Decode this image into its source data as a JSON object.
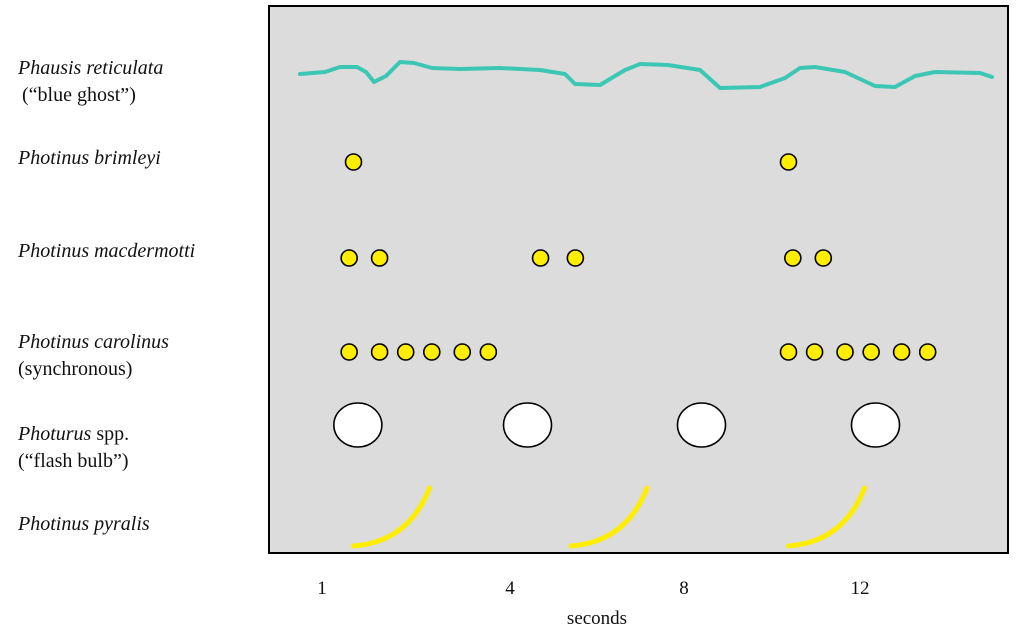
{
  "rows": [
    {
      "species": "Phausis reticulata",
      "note": "(“blue ghost”)",
      "pattern": "continuous glow"
    },
    {
      "species": "Photinus brimleyi",
      "note": "",
      "pattern": "single flash"
    },
    {
      "species": "Photinus macdermotti",
      "note": "",
      "pattern": "double flash"
    },
    {
      "species": "Photinus carolinus",
      "note": "(synchronous)",
      "pattern": "flash burst"
    },
    {
      "species": "Photurus",
      "species_suffix": " spp.",
      "note": "(“flash bulb”)",
      "pattern": "large flash"
    },
    {
      "species": "Photinus pyralis",
      "note": "",
      "pattern": "J-stroke"
    }
  ],
  "x_axis": {
    "ticks": [
      "1",
      "4",
      "8",
      "12"
    ],
    "label": "seconds"
  },
  "colors": {
    "panel": "#dcdcdc",
    "glow": "#3cc7b4",
    "flash_yellow": "#ffee00",
    "flash_white": "#ffffff",
    "stroke": "#000000"
  },
  "chart_data": {
    "type": "timeline",
    "xlabel": "seconds",
    "x_ticks": [
      1,
      4,
      8,
      12
    ],
    "series": [
      {
        "name": "Phausis reticulata",
        "kind": "continuous"
      },
      {
        "name": "Photinus brimleyi",
        "kind": "flash",
        "flash_times": [
          1.0,
          11.0
        ]
      },
      {
        "name": "Photinus macdermotti",
        "kind": "flash",
        "flash_times": [
          0.9,
          1.6,
          5.3,
          6.1,
          11.1,
          11.8
        ]
      },
      {
        "name": "Photinus carolinus",
        "kind": "flash",
        "flash_times": [
          0.9,
          1.6,
          2.2,
          2.8,
          3.5,
          4.1,
          11.0,
          11.6,
          12.3,
          12.9,
          13.6,
          14.2
        ]
      },
      {
        "name": "Photurus spp.",
        "kind": "large_flash",
        "flash_times": [
          1.1,
          5.0,
          9.0,
          13.0
        ]
      },
      {
        "name": "Photinus pyralis",
        "kind": "J-stroke",
        "flash_times": [
          1.0,
          6.0,
          11.0
        ]
      }
    ]
  }
}
